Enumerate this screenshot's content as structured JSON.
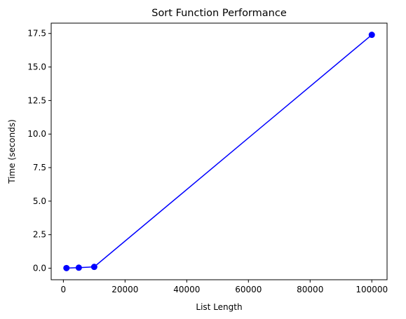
{
  "chart_data": {
    "type": "line",
    "title": "Sort Function Performance",
    "xlabel": "List Length",
    "ylabel": "Time (seconds)",
    "x": [
      1000,
      5000,
      10000,
      100000
    ],
    "series": [
      {
        "values": [
          0.01,
          0.04,
          0.1,
          17.4
        ]
      }
    ],
    "xlim": [
      -3950,
      104950
    ],
    "ylim": [
      -0.86,
      18.27
    ],
    "xticks": [
      0,
      20000,
      40000,
      60000,
      80000,
      100000
    ],
    "xtick_labels": [
      "0",
      "20000",
      "40000",
      "60000",
      "80000",
      "100000"
    ],
    "yticks": [
      0,
      2.5,
      5,
      7.5,
      10,
      12.5,
      15,
      17.5
    ],
    "ytick_labels": [
      "0.0",
      "2.5",
      "5.0",
      "7.5",
      "10.0",
      "12.5",
      "15.0",
      "17.5"
    ],
    "grid": false,
    "marker": "circle",
    "line_color": "#0000ff"
  }
}
